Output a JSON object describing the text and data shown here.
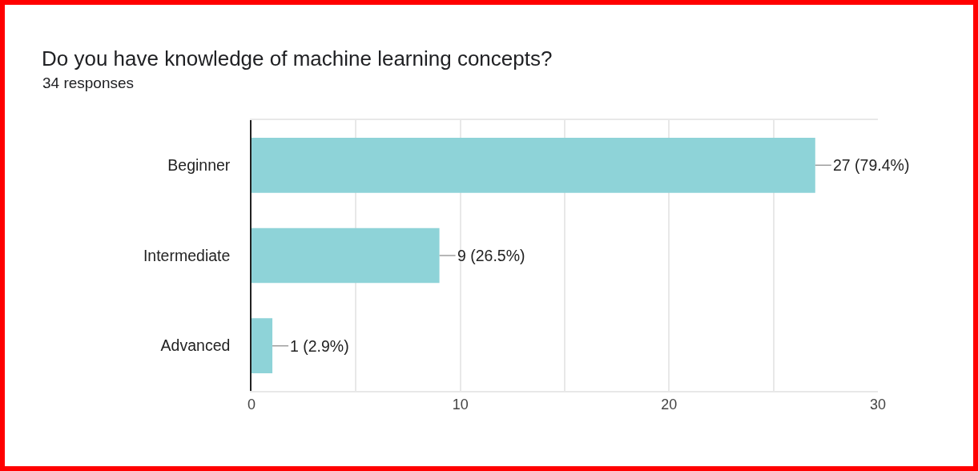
{
  "chart_data": {
    "type": "bar",
    "orientation": "horizontal",
    "title": "Do you have knowledge of machine learning concepts?",
    "subtitle": "34 responses",
    "categories": [
      "Beginner",
      "Intermediate",
      "Advanced"
    ],
    "values": [
      27,
      9,
      1
    ],
    "color": "#8ed3d8",
    "value_labels": [
      "27 (79.4%)",
      "9 (26.5%)",
      "1 (2.9%)"
    ],
    "xlim": [
      0,
      30
    ],
    "xticks": [
      0,
      {
        "value": 5,
        "label": null
      },
      10,
      {
        "value": 15,
        "label": null
      },
      20,
      {
        "value": 25,
        "label": null
      },
      30
    ],
    "grid": "x"
  }
}
